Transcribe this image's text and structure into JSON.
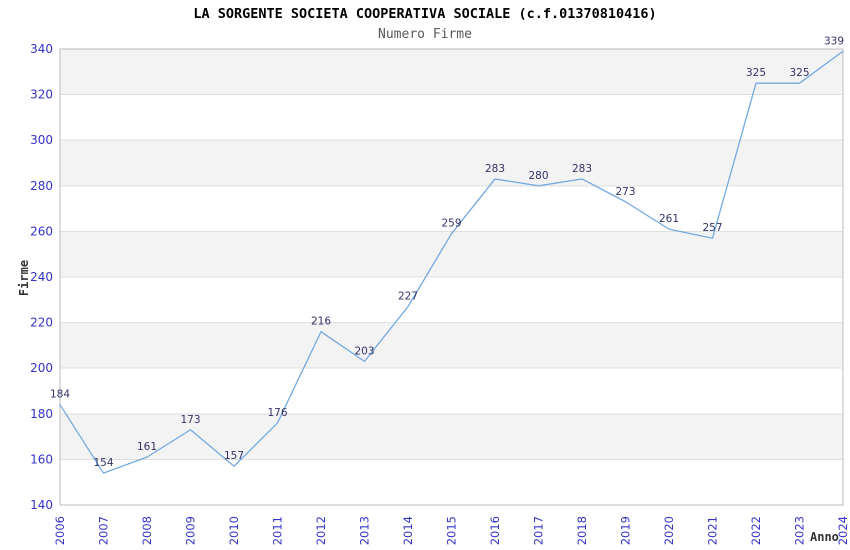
{
  "title": "LA SORGENTE SOCIETA COOPERATIVA SOCIALE (c.f.01370810416)",
  "subtitle": "Numero Firme",
  "colors": {
    "line": "#74a9e0",
    "tick_label": "#3333cc",
    "data_label": "#333366",
    "band": "#f3f3f3",
    "grid": "#dfdfdf",
    "border": "#bdbdbd",
    "axis_title": "#333333",
    "title": "#000000",
    "subtitle": "#595959",
    "background": "#ffffff"
  },
  "chart_data": {
    "type": "line",
    "title": "LA SORGENTE SOCIETA COOPERATIVA SOCIALE (c.f.01370810416)",
    "subtitle": "Numero Firme",
    "xlabel": "Anno",
    "ylabel": "Firme",
    "x": [
      2006,
      2007,
      2008,
      2009,
      2010,
      2011,
      2012,
      2013,
      2014,
      2015,
      2016,
      2017,
      2018,
      2019,
      2020,
      2021,
      2022,
      2023,
      2024
    ],
    "values": [
      184,
      154,
      161,
      173,
      157,
      176,
      216,
      203,
      227,
      259,
      283,
      280,
      283,
      273,
      261,
      257,
      325,
      325,
      339
    ],
    "ylim": [
      140,
      340
    ],
    "ytick_step": 20,
    "grid": true,
    "banded_background": true,
    "legend": "none",
    "data_labels": true,
    "x_tick_rotation": -90
  }
}
